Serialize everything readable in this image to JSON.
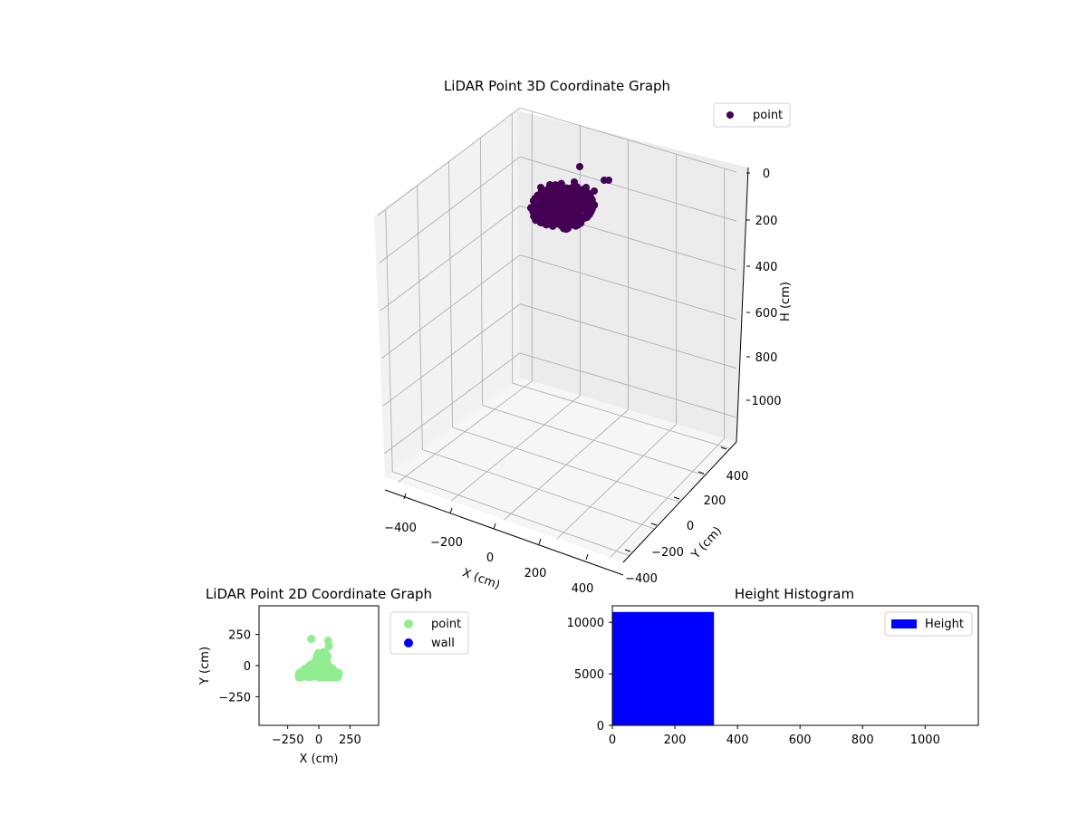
{
  "chart_data": [
    {
      "type": "scatter",
      "title": "LiDAR Point 3D Coordinate Graph",
      "xlabel": "X (cm)",
      "ylabel": "Y (cm)",
      "zlabel": "H (cm)",
      "x_ticks": [
        "−400",
        "−200",
        "0",
        "200",
        "400"
      ],
      "y_ticks": [
        "400",
        "200",
        "0",
        "−200",
        "−400"
      ],
      "z_ticks": [
        "0",
        "200",
        "400",
        "600",
        "800",
        "1000"
      ],
      "xlim": [
        -450,
        450
      ],
      "ylim": [
        -450,
        450
      ],
      "zlim": [
        1100,
        0
      ],
      "z_inverted": true,
      "grid": true,
      "legend_position": "top-right",
      "series": [
        {
          "name": "point",
          "color": "#440154",
          "cluster_center": {
            "x": 0,
            "y": 0,
            "h": 120
          },
          "outliers": [
            {
              "x": 50,
              "y": 200,
              "h": 25
            },
            {
              "x": 95,
              "y": 205,
              "h": 95
            },
            {
              "x": 140,
              "y": 160,
              "h": 75
            },
            {
              "x": 120,
              "y": 75,
              "h": 120
            },
            {
              "x": 10,
              "y": 40,
              "h": 105
            }
          ]
        }
      ]
    },
    {
      "type": "scatter",
      "title": "LiDAR Point 2D Coordinate Graph",
      "xlabel": "X (cm)",
      "ylabel": "Y (cm)",
      "x_ticks": [
        "−250",
        "0",
        "250"
      ],
      "y_ticks": [
        "250",
        "0",
        "−250"
      ],
      "xlim": [
        -480,
        480
      ],
      "ylim": [
        -480,
        480
      ],
      "legend_position": "outside-right",
      "series": [
        {
          "name": "point",
          "color": "#90ee90",
          "cluster_extent": {
            "x": [
              -160,
              160
            ],
            "y": [
              -95,
              30
            ]
          },
          "outliers": [
            {
              "x": -60,
              "y": 215
            },
            {
              "x": 75,
              "y": 200
            },
            {
              "x": 80,
              "y": 155
            }
          ]
        },
        {
          "name": "wall",
          "color": "#0000ff",
          "points": []
        }
      ]
    },
    {
      "type": "bar",
      "title": "Height Histogram",
      "x_ticks": [
        "0",
        "200",
        "400",
        "600",
        "800",
        "1000"
      ],
      "y_ticks": [
        "0",
        "5000",
        "10000"
      ],
      "xlim": [
        0,
        1170
      ],
      "ylim": [
        0,
        11600
      ],
      "legend_position": "top-right",
      "series": [
        {
          "name": "Height",
          "color": "#0000ff",
          "bins": [
            {
              "start": 0,
              "end": 325,
              "count": 11000
            }
          ]
        }
      ]
    }
  ]
}
